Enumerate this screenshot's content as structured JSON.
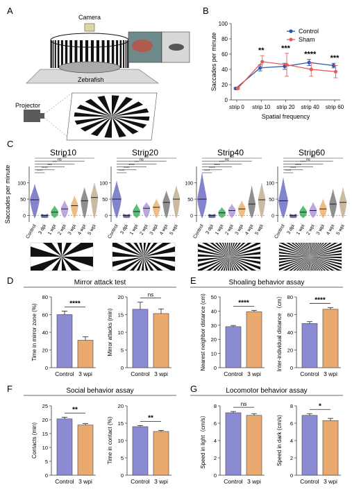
{
  "panels": {
    "A": {
      "label": "A",
      "camera_label": "Camera",
      "zebrafish_label": "Zebrafish",
      "projector_label": "Projector"
    }
  },
  "colors": {
    "control": "#2255b5",
    "sham": "#e85a52",
    "bar_control": "#8b8bd4",
    "bar_3wpi": "#eaa96e",
    "violin": [
      "#5b5bbd",
      "#3a3a8a",
      "#28a84a",
      "#a58ad1",
      "#e8a85c",
      "#6a6a6a",
      "#b8a382"
    ]
  },
  "chart_data": [
    {
      "id": "B",
      "panel_label": "B",
      "type": "line",
      "categories": [
        "strip 0",
        "strip 10",
        "strip 20",
        "strip 40",
        "strip 60"
      ],
      "series": [
        {
          "name": "Control",
          "values": [
            15,
            42,
            44,
            49,
            45
          ],
          "errors": [
            1,
            4,
            4,
            4,
            3
          ]
        },
        {
          "name": "Sham",
          "values": [
            15,
            50,
            46,
            40,
            37
          ],
          "errors": [
            1,
            8,
            15,
            9,
            8
          ]
        }
      ],
      "xlabel": "Spatial frequency",
      "ylabel": "Saccades per minute",
      "ylim": [
        0,
        100
      ],
      "yticks": [
        0,
        20,
        40,
        60,
        80,
        100
      ],
      "significance": [
        "",
        "**",
        "***",
        "****",
        "***"
      ],
      "legend": "top-right"
    },
    {
      "id": "C",
      "panel_label": "C",
      "type": "violin",
      "ylabel": "Saccades per minute",
      "ylim": [
        -20,
        150
      ],
      "yticks": [
        0,
        50,
        100
      ],
      "subplots": [
        {
          "title": "Strip10",
          "categories": [
            "Control",
            "3 dpi",
            "1 wpi",
            "2 wpi",
            "3 wpi",
            "4 wpi",
            "5 wpi"
          ],
          "medians": [
            48,
            0,
            10,
            20,
            30,
            45,
            55
          ],
          "maxima": [
            95,
            2,
            30,
            45,
            60,
            85,
            100
          ],
          "brackets": [
            "****",
            "****",
            "***",
            "***",
            "ns",
            "ns"
          ]
        },
        {
          "title": "Strip20",
          "categories": [
            "Control",
            "3 dpi",
            "1 wpi",
            "2 wpi",
            "3 wpi",
            "4 wpi",
            "5 wpi"
          ],
          "medians": [
            50,
            0,
            12,
            22,
            25,
            40,
            50
          ],
          "maxima": [
            105,
            2,
            35,
            40,
            50,
            75,
            90
          ],
          "brackets": [
            "****",
            "****",
            "****",
            "***",
            "ns",
            "ns"
          ]
        },
        {
          "title": "Strip40",
          "categories": [
            "Control",
            "3 dpi",
            "1 wpi",
            "2 wpi",
            "3 wpi",
            "4 wpi",
            "5 wpi"
          ],
          "medians": [
            50,
            0,
            8,
            15,
            20,
            35,
            48
          ],
          "maxima": [
            130,
            2,
            25,
            35,
            45,
            90,
            100
          ],
          "brackets": [
            "****",
            "****",
            "****",
            "****",
            "ns",
            "ns"
          ]
        },
        {
          "title": "Strip60",
          "categories": [
            "Control",
            "3 dpi",
            "1 wpi",
            "2 wpi",
            "3 wpi",
            "4 wpi",
            "5 wpi"
          ],
          "medians": [
            45,
            0,
            10,
            15,
            20,
            35,
            40
          ],
          "maxima": [
            115,
            2,
            30,
            40,
            50,
            80,
            85
          ],
          "brackets": [
            "****",
            "****",
            "****",
            "****",
            "ns",
            "ns"
          ]
        }
      ],
      "stripe_counts": [
        10,
        20,
        40,
        60
      ]
    },
    {
      "id": "D",
      "panel_label": "D",
      "type": "bar",
      "title": "Mirror attack test",
      "subplots": [
        {
          "categories": [
            "Control",
            "3 wpi"
          ],
          "values": [
            60,
            31
          ],
          "errors": [
            4,
            4
          ],
          "ylabel": "Time in mirror zone (%)",
          "ylim": [
            0,
            80
          ],
          "yticks": [
            0,
            20,
            40,
            60,
            80
          ],
          "significance": "****"
        },
        {
          "categories": [
            "Control",
            "3 wpi"
          ],
          "values": [
            16.5,
            15.3
          ],
          "errors": [
            2.0,
            1.3
          ],
          "ylabel": "Mirror attacks (min)",
          "ylim": [
            0,
            20
          ],
          "yticks": [
            0,
            5,
            10,
            15,
            20
          ],
          "significance": "ns"
        }
      ]
    },
    {
      "id": "E",
      "panel_label": "E",
      "type": "bar",
      "title": "Shoaling behavior assay",
      "subplots": [
        {
          "categories": [
            "Control",
            "3 wpi"
          ],
          "values": [
            29,
            39.5
          ],
          "errors": [
            0.8,
            1.0
          ],
          "ylabel": "Nearest neighbor distance (cm)",
          "ylim": [
            0,
            50
          ],
          "yticks": [
            0,
            10,
            20,
            30,
            40,
            50
          ],
          "significance": "****"
        },
        {
          "categories": [
            "Control",
            "3 wpi"
          ],
          "values": [
            50,
            66
          ],
          "errors": [
            2,
            2
          ],
          "ylabel": "Inter-individual distance （cm）",
          "ylim": [
            0,
            80
          ],
          "yticks": [
            0,
            20,
            40,
            60,
            80
          ],
          "significance": "****"
        }
      ]
    },
    {
      "id": "F",
      "panel_label": "F",
      "type": "bar",
      "title": "Social behavior assay",
      "subplots": [
        {
          "categories": [
            "Control",
            "3 wpi"
          ],
          "values": [
            20.3,
            18.1
          ],
          "errors": [
            0.6,
            0.5
          ],
          "ylabel": "Contacts (min)",
          "ylim": [
            0,
            25
          ],
          "yticks": [
            0,
            5,
            10,
            15,
            20,
            25
          ],
          "significance": "**"
        },
        {
          "categories": [
            "Control",
            "3 wpi"
          ],
          "values": [
            14.0,
            12.6
          ],
          "errors": [
            0.3,
            0.3
          ],
          "ylabel": "Time in contact (%)",
          "ylim": [
            0,
            20
          ],
          "yticks": [
            0,
            5,
            10,
            15,
            20
          ],
          "significance": "**"
        }
      ]
    },
    {
      "id": "G",
      "panel_label": "G",
      "type": "bar",
      "title": "Locomotor behavior assay",
      "subplots": [
        {
          "categories": [
            "Control",
            "3 wpi"
          ],
          "values": [
            7.2,
            6.9
          ],
          "errors": [
            0.15,
            0.2
          ],
          "ylabel": "Speed in light（cm/s）",
          "ylim": [
            0,
            8
          ],
          "yticks": [
            0,
            2,
            4,
            6,
            8
          ],
          "significance": "ns"
        },
        {
          "categories": [
            "Control",
            "3 wpi"
          ],
          "values": [
            6.9,
            6.3
          ],
          "errors": [
            0.2,
            0.25
          ],
          "ylabel": "Speed in dark (cm/s)",
          "ylim": [
            0,
            8
          ],
          "yticks": [
            0,
            2,
            4,
            6,
            8
          ],
          "significance": "*"
        }
      ]
    }
  ]
}
